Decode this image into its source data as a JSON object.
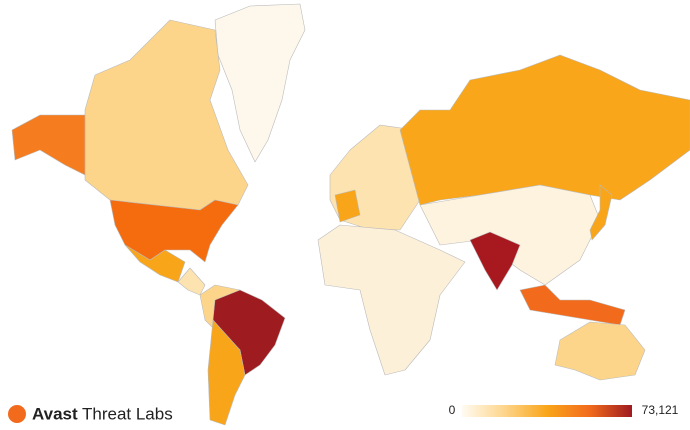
{
  "brand": {
    "name": "Avast",
    "product": "Threat Labs"
  },
  "legend": {
    "min": {
      "value": 0,
      "label": "0"
    },
    "max": {
      "value": 73121,
      "label": "73,121"
    },
    "colors": [
      "#fffbf2",
      "#fdd58a",
      "#f9a51a",
      "#f26b1d",
      "#9e1b20"
    ]
  }
}
